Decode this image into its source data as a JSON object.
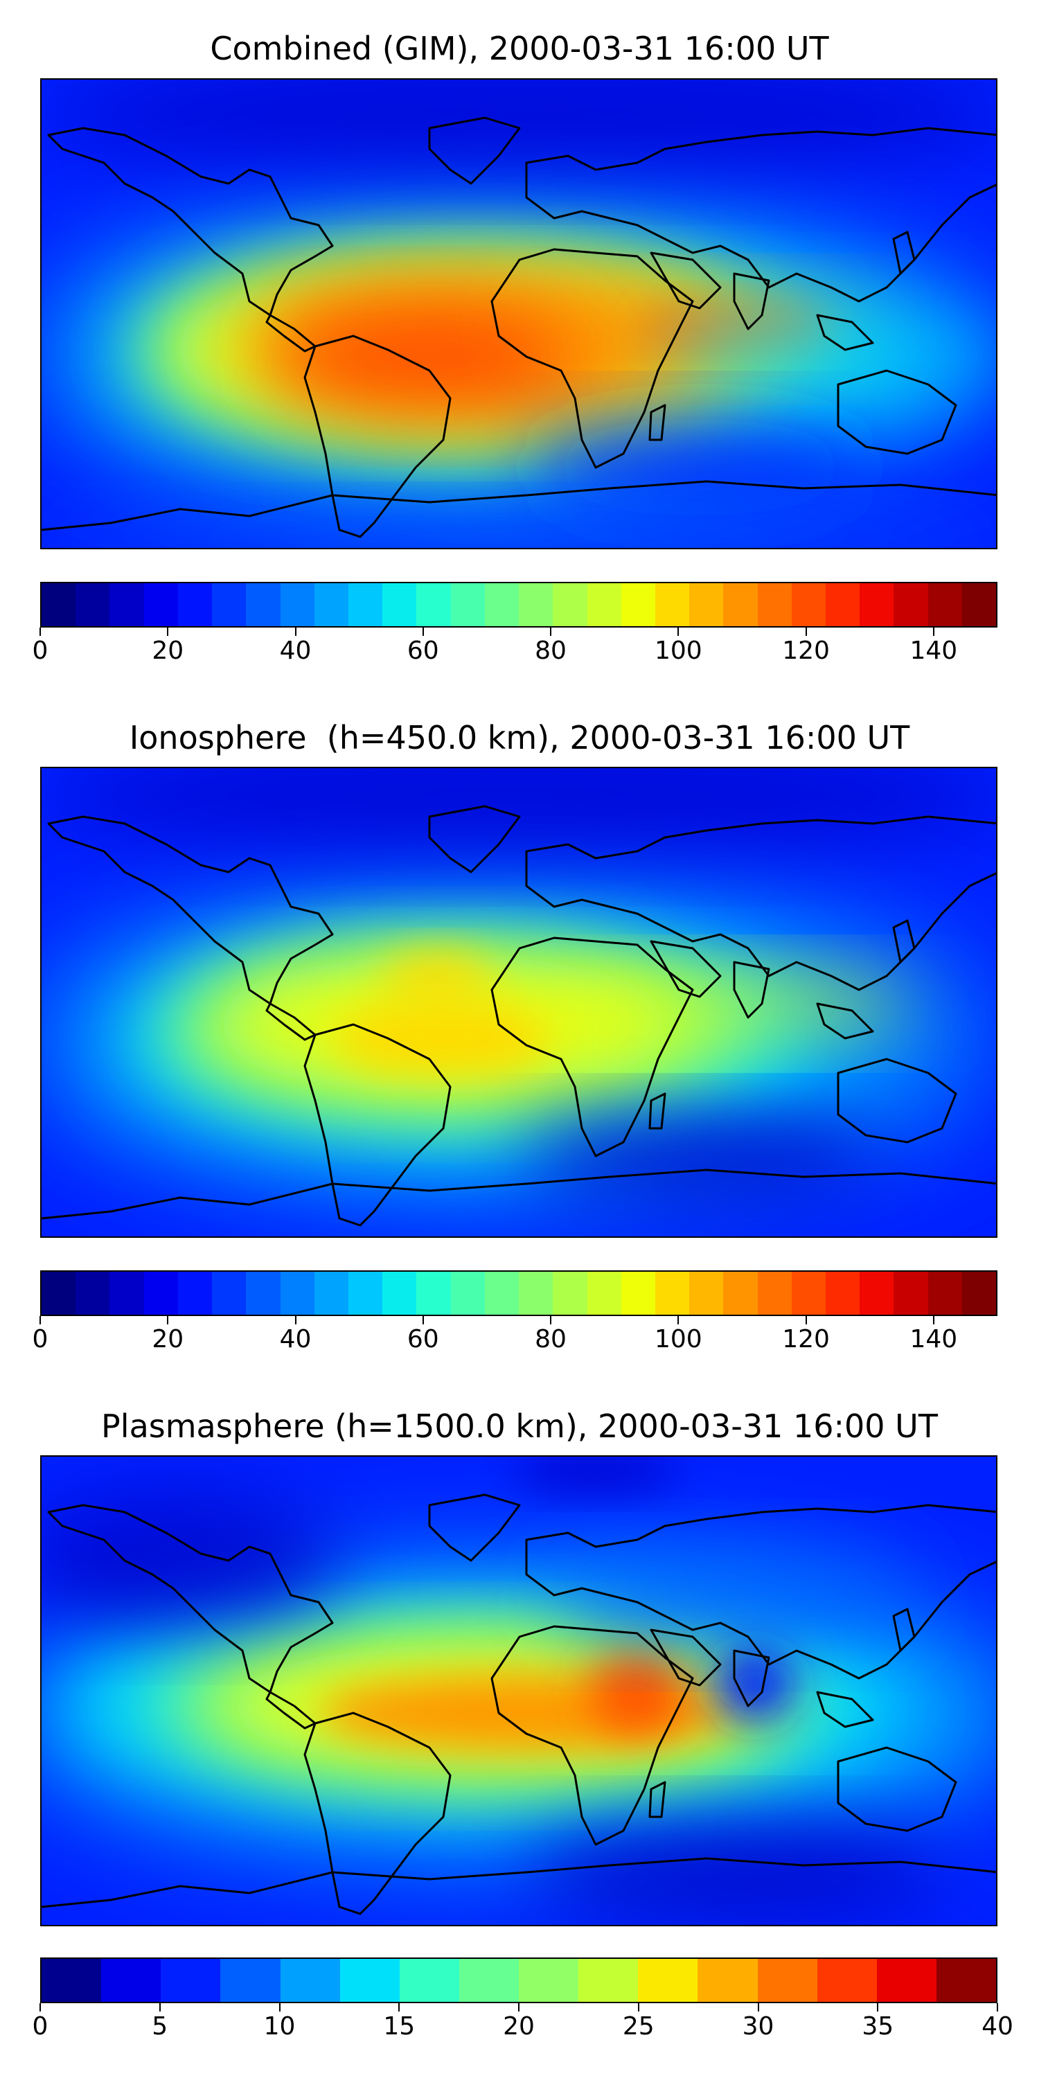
{
  "panels": [
    {
      "title": "Combined (GIM), 2000-03-31 16:00 UT",
      "colorbar": {
        "vmin": 0,
        "vmax": 150,
        "colors": [
          "#00007f",
          "#00009f",
          "#0000c8",
          "#0000f1",
          "#0014ff",
          "#0038ff",
          "#005cff",
          "#0080ff",
          "#00a4ff",
          "#00c8ff",
          "#08ecee",
          "#28ffce",
          "#48ffad",
          "#6bff8b",
          "#8bff6b",
          "#adff48",
          "#ceff28",
          "#eeff08",
          "#ffda00",
          "#ffb700",
          "#ff9400",
          "#ff7100",
          "#ff4e00",
          "#ff2b00",
          "#f10800",
          "#c80000",
          "#9f0000",
          "#7f0000"
        ],
        "ticks": [
          0,
          20,
          40,
          60,
          80,
          100,
          120,
          140
        ],
        "tick_labels": [
          "0",
          "20",
          "40",
          "60",
          "80",
          "100",
          "120",
          "140"
        ]
      }
    },
    {
      "title": "Ionosphere  (h=450.0 km), 2000-03-31 16:00 UT",
      "colorbar": {
        "vmin": 0,
        "vmax": 150,
        "colors": [
          "#00007f",
          "#00009f",
          "#0000c8",
          "#0000f1",
          "#0014ff",
          "#0038ff",
          "#005cff",
          "#0080ff",
          "#00a4ff",
          "#00c8ff",
          "#08ecee",
          "#28ffce",
          "#48ffad",
          "#6bff8b",
          "#8bff6b",
          "#adff48",
          "#ceff28",
          "#eeff08",
          "#ffda00",
          "#ffb700",
          "#ff9400",
          "#ff7100",
          "#ff4e00",
          "#ff2b00",
          "#f10800",
          "#c80000",
          "#9f0000",
          "#7f0000"
        ],
        "ticks": [
          0,
          20,
          40,
          60,
          80,
          100,
          120,
          140
        ],
        "tick_labels": [
          "0",
          "20",
          "40",
          "60",
          "80",
          "100",
          "120",
          "140"
        ]
      }
    },
    {
      "title": "Plasmasphere (h=1500.0 km), 2000-03-31 16:00 UT",
      "colorbar": {
        "vmin": 0,
        "vmax": 40,
        "colors": [
          "#00008f",
          "#0000e8",
          "#0020ff",
          "#0060ff",
          "#00a0ff",
          "#00e0fb",
          "#33ffc4",
          "#66ff92",
          "#92ff66",
          "#c4ff33",
          "#fbea00",
          "#ffae00",
          "#ff7300",
          "#ff3700",
          "#e80000",
          "#8f0000"
        ],
        "ticks": [
          0,
          5,
          10,
          15,
          20,
          25,
          30,
          35,
          40
        ],
        "tick_labels": [
          "0",
          "5",
          "10",
          "15",
          "20",
          "25",
          "30",
          "35",
          "40"
        ]
      }
    }
  ]
}
